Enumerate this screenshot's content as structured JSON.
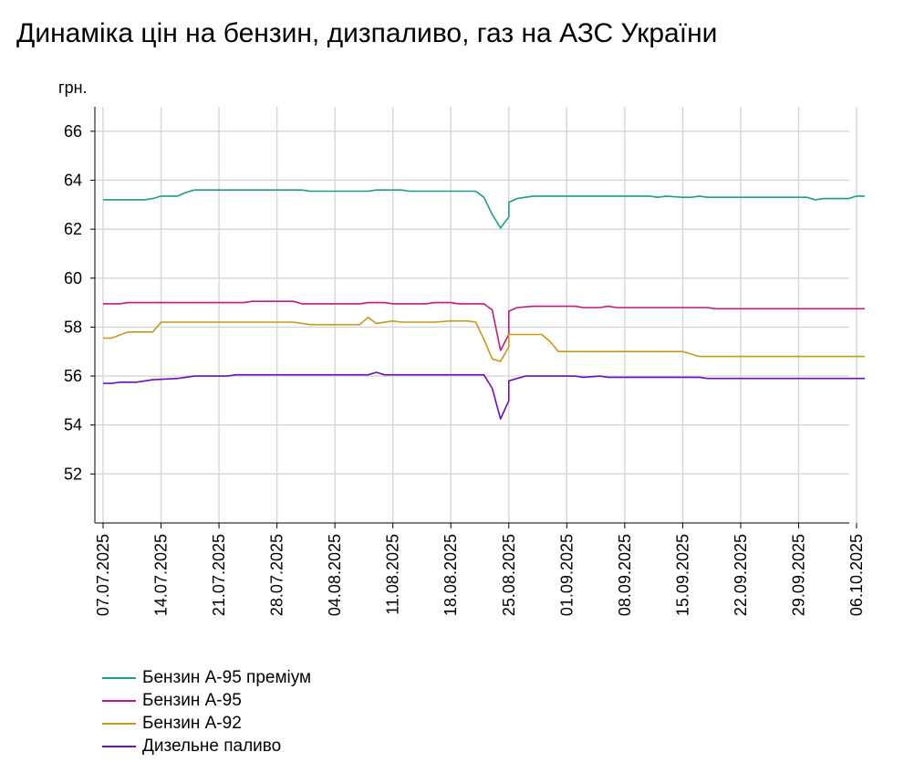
{
  "chart_data": {
    "type": "line",
    "title": "Динаміка цін на бензин, дизпаливо, газ на АЗС України",
    "ylabel": "грн.",
    "xlabel": "",
    "ylim": [
      50,
      67
    ],
    "yticks": [
      52,
      54,
      56,
      58,
      60,
      62,
      64,
      66
    ],
    "grid": true,
    "legend_position": "bottom-left",
    "x_start": "07.07.2025",
    "x_end": "07.10.2025",
    "x_ticks": [
      "07.07.2025",
      "14.07.2025",
      "21.07.2025",
      "28.07.2025",
      "04.08.2025",
      "11.08.2025",
      "18.08.2025",
      "25.08.2025",
      "01.09.2025",
      "08.09.2025",
      "15.09.2025",
      "22.09.2025",
      "29.09.2025",
      "06.10.2025"
    ],
    "series": [
      {
        "name": "Бензин А-95 преміум",
        "color": "#1a9e87",
        "points": [
          [
            "07.07.2025",
            63.2
          ],
          [
            "10.07.2025",
            63.2
          ],
          [
            "12.07.2025",
            63.2
          ],
          [
            "13.07.2025",
            63.25
          ],
          [
            "14.07.2025",
            63.35
          ],
          [
            "16.07.2025",
            63.35
          ],
          [
            "17.07.2025",
            63.5
          ],
          [
            "18.07.2025",
            63.6
          ],
          [
            "31.07.2025",
            63.6
          ],
          [
            "01.08.2025",
            63.55
          ],
          [
            "08.08.2025",
            63.55
          ],
          [
            "09.08.2025",
            63.6
          ],
          [
            "12.08.2025",
            63.6
          ],
          [
            "13.08.2025",
            63.55
          ],
          [
            "21.08.2025",
            63.55
          ],
          [
            "22.08.2025",
            63.3
          ],
          [
            "23.08.2025",
            62.6
          ],
          [
            "24.08.2025",
            62.05
          ],
          [
            "25.08.2025",
            62.5
          ],
          [
            "25.08.2025",
            63.1
          ],
          [
            "26.08.2025",
            63.25
          ],
          [
            "27.08.2025",
            63.3
          ],
          [
            "28.08.2025",
            63.35
          ],
          [
            "11.09.2025",
            63.35
          ],
          [
            "12.09.2025",
            63.3
          ],
          [
            "13.09.2025",
            63.35
          ],
          [
            "15.09.2025",
            63.3
          ],
          [
            "16.09.2025",
            63.3
          ],
          [
            "17.09.2025",
            63.35
          ],
          [
            "18.09.2025",
            63.3
          ],
          [
            "30.09.2025",
            63.3
          ],
          [
            "01.10.2025",
            63.2
          ],
          [
            "02.10.2025",
            63.25
          ],
          [
            "05.10.2025",
            63.25
          ],
          [
            "06.10.2025",
            63.35
          ],
          [
            "07.10.2025",
            63.35
          ]
        ]
      },
      {
        "name": "Бензин А-95",
        "color": "#c4197a",
        "points": [
          [
            "07.07.2025",
            58.95
          ],
          [
            "09.07.2025",
            58.95
          ],
          [
            "10.07.2025",
            59.0
          ],
          [
            "24.07.2025",
            59.0
          ],
          [
            "25.07.2025",
            59.05
          ],
          [
            "30.07.2025",
            59.05
          ],
          [
            "31.07.2025",
            58.95
          ],
          [
            "07.08.2025",
            58.95
          ],
          [
            "08.08.2025",
            59.0
          ],
          [
            "10.08.2025",
            59.0
          ],
          [
            "11.08.2025",
            58.95
          ],
          [
            "15.08.2025",
            58.95
          ],
          [
            "16.08.2025",
            59.0
          ],
          [
            "18.08.2025",
            59.0
          ],
          [
            "19.08.2025",
            58.95
          ],
          [
            "22.08.2025",
            58.95
          ],
          [
            "23.08.2025",
            58.7
          ],
          [
            "24.08.2025",
            57.05
          ],
          [
            "25.08.2025",
            57.7
          ],
          [
            "25.08.2025",
            58.65
          ],
          [
            "26.08.2025",
            58.8
          ],
          [
            "28.08.2025",
            58.85
          ],
          [
            "02.09.2025",
            58.85
          ],
          [
            "03.09.2025",
            58.8
          ],
          [
            "05.09.2025",
            58.8
          ],
          [
            "06.09.2025",
            58.85
          ],
          [
            "07.09.2025",
            58.8
          ],
          [
            "18.09.2025",
            58.8
          ],
          [
            "19.09.2025",
            58.75
          ],
          [
            "07.10.2025",
            58.75
          ]
        ]
      },
      {
        "name": "Бензин А-92",
        "color": "#c49a17",
        "points": [
          [
            "07.07.2025",
            57.55
          ],
          [
            "08.07.2025",
            57.55
          ],
          [
            "10.07.2025",
            57.8
          ],
          [
            "13.07.2025",
            57.8
          ],
          [
            "14.07.2025",
            58.2
          ],
          [
            "30.07.2025",
            58.2
          ],
          [
            "01.08.2025",
            58.1
          ],
          [
            "07.08.2025",
            58.1
          ],
          [
            "08.08.2025",
            58.4
          ],
          [
            "09.08.2025",
            58.15
          ],
          [
            "11.08.2025",
            58.25
          ],
          [
            "12.08.2025",
            58.2
          ],
          [
            "16.08.2025",
            58.2
          ],
          [
            "18.08.2025",
            58.25
          ],
          [
            "20.08.2025",
            58.25
          ],
          [
            "21.08.2025",
            58.2
          ],
          [
            "22.08.2025",
            57.5
          ],
          [
            "23.08.2025",
            56.7
          ],
          [
            "24.08.2025",
            56.6
          ],
          [
            "25.08.2025",
            57.2
          ],
          [
            "25.08.2025",
            57.7
          ],
          [
            "29.08.2025",
            57.7
          ],
          [
            "30.08.2025",
            57.4
          ],
          [
            "31.08.2025",
            57.0
          ],
          [
            "15.09.2025",
            57.0
          ],
          [
            "16.09.2025",
            56.9
          ],
          [
            "17.09.2025",
            56.8
          ],
          [
            "07.10.2025",
            56.8
          ]
        ]
      },
      {
        "name": "Дизельне паливо",
        "color": "#6a0fbd",
        "points": [
          [
            "07.07.2025",
            55.7
          ],
          [
            "08.07.2025",
            55.7
          ],
          [
            "09.07.2025",
            55.75
          ],
          [
            "11.07.2025",
            55.75
          ],
          [
            "12.07.2025",
            55.8
          ],
          [
            "13.07.2025",
            55.85
          ],
          [
            "16.07.2025",
            55.9
          ],
          [
            "17.07.2025",
            55.95
          ],
          [
            "18.07.2025",
            56.0
          ],
          [
            "22.07.2025",
            56.0
          ],
          [
            "23.07.2025",
            56.05
          ],
          [
            "08.08.2025",
            56.05
          ],
          [
            "09.08.2025",
            56.15
          ],
          [
            "10.08.2025",
            56.05
          ],
          [
            "22.08.2025",
            56.05
          ],
          [
            "23.08.2025",
            55.5
          ],
          [
            "24.08.2025",
            54.25
          ],
          [
            "25.08.2025",
            55.0
          ],
          [
            "25.08.2025",
            55.8
          ],
          [
            "26.08.2025",
            55.9
          ],
          [
            "27.08.2025",
            56.0
          ],
          [
            "02.09.2025",
            56.0
          ],
          [
            "03.09.2025",
            55.95
          ],
          [
            "05.09.2025",
            56.0
          ],
          [
            "06.09.2025",
            55.95
          ],
          [
            "17.09.2025",
            55.95
          ],
          [
            "18.09.2025",
            55.9
          ],
          [
            "07.10.2025",
            55.9
          ]
        ]
      }
    ]
  }
}
